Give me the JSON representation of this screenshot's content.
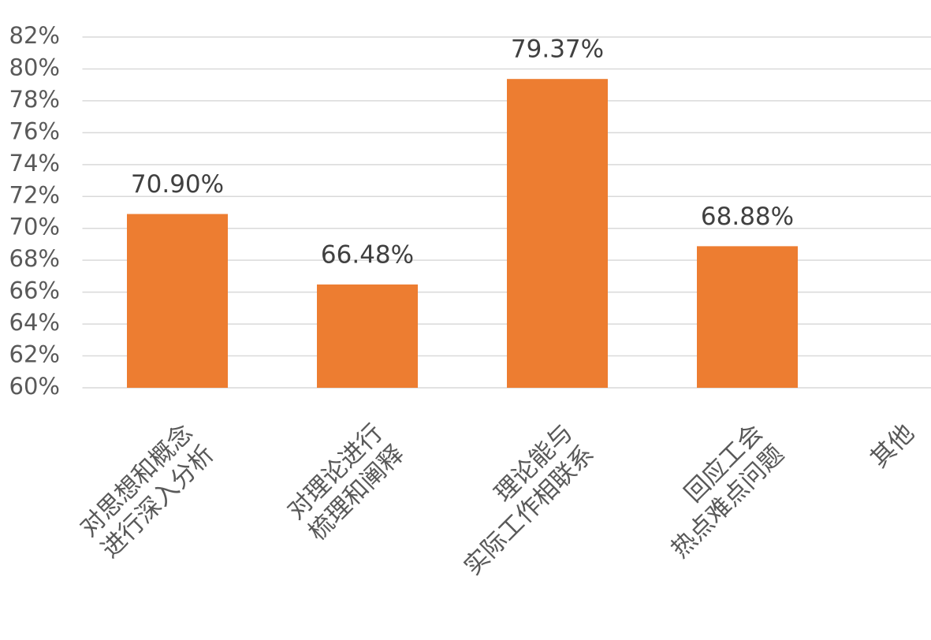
{
  "chart_data": {
    "type": "bar",
    "categories": [
      [
        "对思想和概念",
        "进行深入分析"
      ],
      [
        "对理论进行",
        "梳理和阐释"
      ],
      [
        "理论能与",
        "实际工作相联系"
      ],
      [
        "回应工会",
        "热点难点问题"
      ],
      [
        "其他"
      ]
    ],
    "values": [
      70.9,
      66.48,
      79.37,
      68.88,
      null
    ],
    "value_labels": [
      "70.90%",
      "66.48%",
      "79.37%",
      "68.88%",
      null
    ],
    "color": "#ed7d31",
    "ylim": [
      60,
      82
    ],
    "yticks": [
      {
        "value": 60,
        "label": "60%"
      },
      {
        "value": 62,
        "label": "62%"
      },
      {
        "value": 64,
        "label": "64%"
      },
      {
        "value": 66,
        "label": "66%"
      },
      {
        "value": 68,
        "label": "68%"
      },
      {
        "value": 70,
        "label": "70%"
      },
      {
        "value": 72,
        "label": "72%"
      },
      {
        "value": 74,
        "label": "74%"
      },
      {
        "value": 76,
        "label": "76%"
      },
      {
        "value": 78,
        "label": "78%"
      },
      {
        "value": 80,
        "label": "80%"
      },
      {
        "value": 82,
        "label": "82%"
      }
    ],
    "grid": true
  }
}
